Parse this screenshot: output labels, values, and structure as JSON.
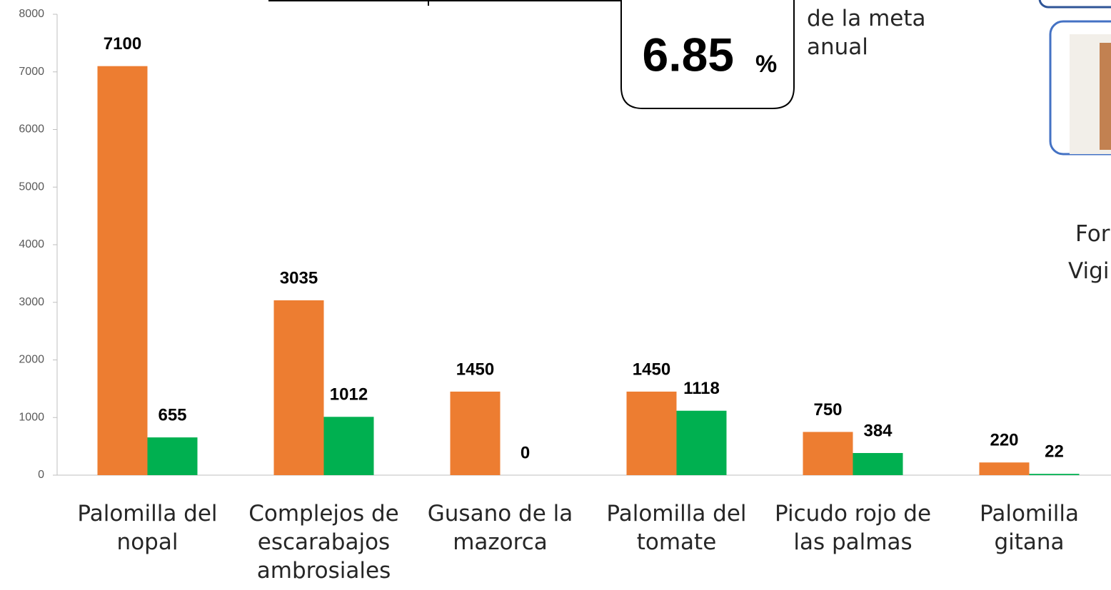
{
  "chart_data": {
    "type": "bar",
    "categories": [
      "Palomilla del nopal",
      "Complejos de escarabajos ambrosiales",
      "Gusano de la mazorca",
      "Palomilla del tomate",
      "Picudo rojo de las palmas",
      "Palomilla gitana"
    ],
    "series": [
      {
        "color": "#ed7d31",
        "values": [
          7100,
          3035,
          1450,
          1450,
          750,
          220
        ]
      },
      {
        "color": "#00b050",
        "values": [
          655,
          1012,
          0,
          1118,
          384,
          22
        ]
      }
    ],
    "ylim": [
      0,
      8000
    ],
    "yticks": [
      0,
      1000,
      2000,
      3000,
      4000,
      5000,
      6000,
      7000,
      8000
    ],
    "grid": false,
    "annotations": {
      "percent_value": "6.85",
      "percent_sign": "%",
      "percent_caption": "de la meta anual",
      "side_text_1": "For",
      "side_text_2": "Vigi"
    }
  }
}
